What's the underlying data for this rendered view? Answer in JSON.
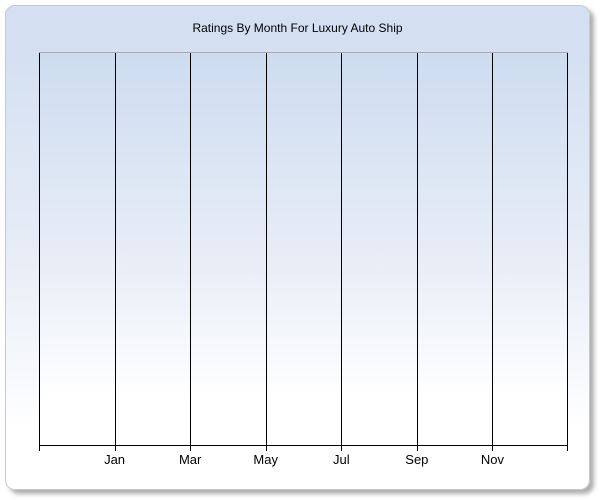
{
  "chart_data": {
    "type": "line",
    "title": "Ratings By Month For Luxury Auto Ship",
    "x_tick_labels": [
      "Jan",
      "Mar",
      "May",
      "Jul",
      "Sep",
      "Nov"
    ],
    "x_gridlines": 8,
    "y_tick_labels": [],
    "series": [],
    "xlabel": "",
    "ylabel": "",
    "legend": false,
    "grid": "vertical-only",
    "plot_empty": true
  },
  "colors": {
    "page_bg": "#ffffff",
    "card_bg_top": "#d4e0f2",
    "card_bg_mid": "#e9eef7",
    "card_bg_bottom": "#ffffff",
    "card_border": "#c3cad6",
    "plot_bg_top": "#cddcf0",
    "plot_bg_mid": "#e9eef7",
    "plot_bg_bottom": "#ffffff",
    "plot_top_border": "#a3abb8",
    "gridline": "#000000",
    "axis": "#000000",
    "text": "#000000"
  }
}
